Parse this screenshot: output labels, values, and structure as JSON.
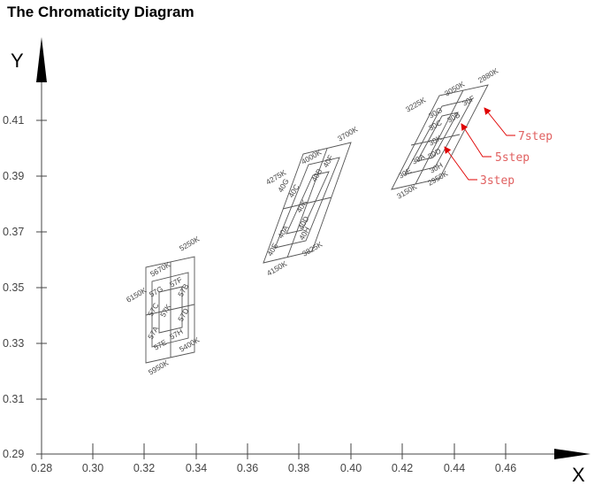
{
  "title": "The Chromaticity Diagram",
  "chart_data": {
    "type": "diagram",
    "x_axis": {
      "label": "X",
      "ticks": [
        "0.28",
        "0.30",
        "0.32",
        "0.34",
        "0.36",
        "0.38",
        "0.40",
        "0.42",
        "0.44",
        "0.46"
      ]
    },
    "y_axis": {
      "label": "Y",
      "ticks": [
        "0.29",
        "0.31",
        "0.33",
        "0.35",
        "0.37",
        "0.39",
        "0.41"
      ]
    },
    "groups": [
      {
        "cct_labels": [
          "6150K",
          "5670K",
          "5250K",
          "5950K",
          "5400K"
        ],
        "bin_labels": [
          "57G",
          "57F",
          "57C",
          "57B",
          "57K",
          "57A",
          "57D",
          "57E",
          "57H"
        ]
      },
      {
        "cct_labels": [
          "4275K",
          "4000K",
          "3700K",
          "4150K",
          "3825K"
        ],
        "bin_labels": [
          "40G",
          "40F",
          "40C",
          "40B",
          "40K",
          "40A",
          "40D",
          "40E",
          "40H"
        ]
      },
      {
        "cct_labels": [
          "3225K",
          "3050K",
          "2880K",
          "3150K",
          "2950K"
        ],
        "bin_labels": [
          "30G",
          "30F",
          "30C",
          "30B",
          "30K",
          "30A",
          "30D",
          "30E",
          "30H"
        ]
      }
    ],
    "step_labels": [
      "7step",
      "5step",
      "3step"
    ]
  }
}
